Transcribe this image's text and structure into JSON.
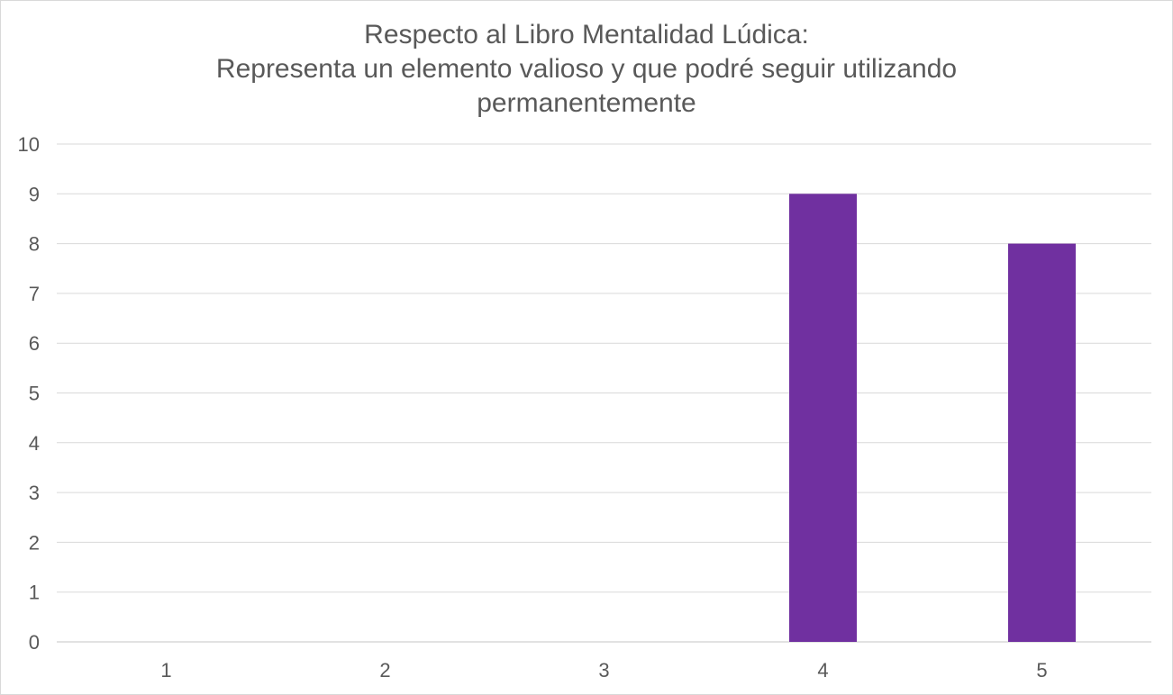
{
  "chart_data": {
    "type": "bar",
    "title_lines": [
      "Respecto al Libro Mentalidad Lúdica:",
      "Representa un elemento valioso y que podré seguir utilizando",
      "permanentemente"
    ],
    "categories": [
      "1",
      "2",
      "3",
      "4",
      "5"
    ],
    "values": [
      0,
      0,
      0,
      9,
      8
    ],
    "xlabel": "",
    "ylabel": "",
    "ylim": [
      0,
      10
    ],
    "yticks": [
      "0",
      "1",
      "2",
      "3",
      "4",
      "5",
      "6",
      "7",
      "8",
      "9",
      "10"
    ],
    "grid": true,
    "legend": "none",
    "bar_color": "#7030A0",
    "grid_color": "#d9d9d9",
    "text_color": "#595959"
  }
}
